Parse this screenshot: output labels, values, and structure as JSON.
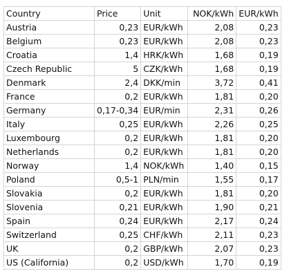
{
  "headers": [
    "Country",
    "Price",
    "Unit",
    "NOK/kWh",
    "EUR/kWh"
  ],
  "rows": [
    [
      "Austria",
      "0,23",
      "EUR/kWh",
      "2,08",
      "0,23"
    ],
    [
      "Belgium",
      "0,23",
      "EUR/kWh",
      "2,08",
      "0,23"
    ],
    [
      "Croatia",
      "1,4",
      "HRK/kWh",
      "1,68",
      "0,19"
    ],
    [
      "Czech Republic",
      "5",
      "CZK/kWh",
      "1,68",
      "0,19"
    ],
    [
      "Denmark",
      "2,4",
      "DKK/min",
      "3,72",
      "0,41"
    ],
    [
      "France",
      "0,2",
      "EUR/kWh",
      "1,81",
      "0,20"
    ],
    [
      "Germany",
      "0,17-0,34",
      "EUR/min",
      "2,31",
      "0,26"
    ],
    [
      "Italy",
      "0,25",
      "EUR/kWh",
      "2,26",
      "0,25"
    ],
    [
      "Luxembourg",
      "0,2",
      "EUR/kWh",
      "1,81",
      "0,20"
    ],
    [
      "Netherlands",
      "0,2",
      "EUR/kWh",
      "1,81",
      "0,20"
    ],
    [
      "Norway",
      "1,4",
      "NOK/kWh",
      "1,40",
      "0,15"
    ],
    [
      "Poland",
      "0,5-1",
      "PLN/min",
      "1,55",
      "0,17"
    ],
    [
      "Slovakia",
      "0,2",
      "EUR/kWh",
      "1,81",
      "0,20"
    ],
    [
      "Slovenia",
      "0,21",
      "EUR/kWh",
      "1,90",
      "0,21"
    ],
    [
      "Spain",
      "0,24",
      "EUR/kWh",
      "2,17",
      "0,24"
    ],
    [
      "Switzerland",
      "0,25",
      "CHF/kWh",
      "2,11",
      "0,23"
    ],
    [
      "UK",
      "0,2",
      "GBP/kWh",
      "2,07",
      "0,23"
    ],
    [
      "US (California)",
      "0,2",
      "USD/kWh",
      "1,70",
      "0,19"
    ]
  ]
}
